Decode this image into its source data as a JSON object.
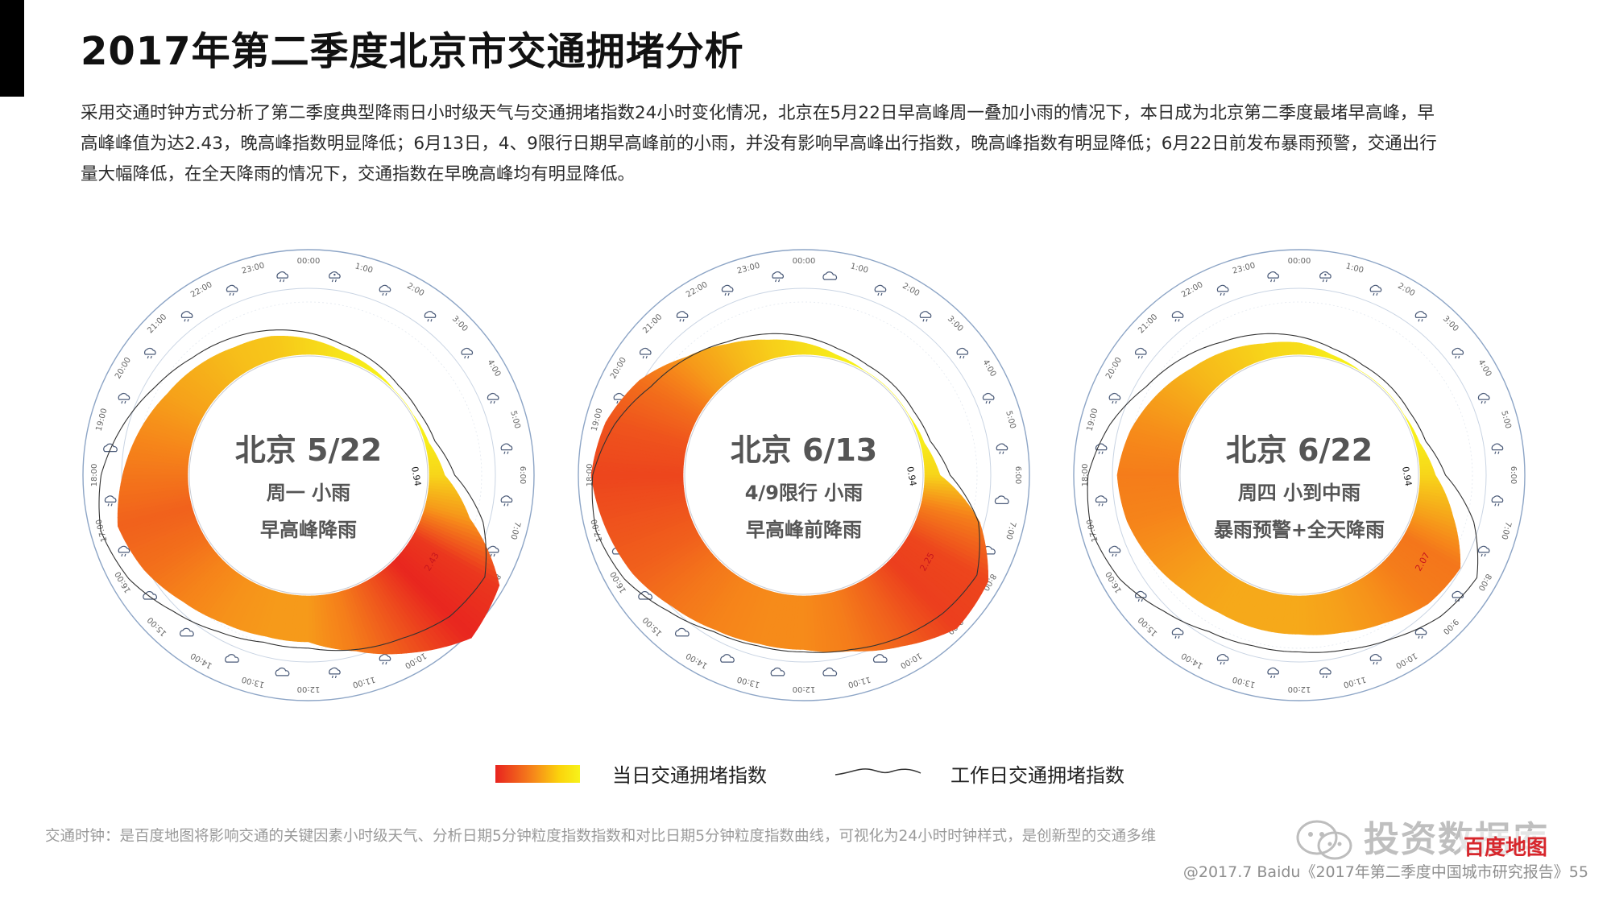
{
  "header": {
    "title": "2017年第二季度北京市交通拥堵分析",
    "intro_lines": [
      "采用交通时钟方式分析了第二季度典型降雨日小时级天气与交通拥堵指数24小时变化情况，北京在5月22日早高峰周一叠加小雨的情况下，本日成为北京第二季度最堵早高峰，早",
      "高峰峰值为达2.43，晚高峰指数明显降低；6月13日，4、9限行日期早高峰前的小雨，并没有影响早高峰出行指数，晚高峰指数有明显降低；6月22日前发布暴雨预警，交通出行",
      "量大幅降低，在全天降雨的情况下，交通指数在早晚高峰均有明显降低。"
    ]
  },
  "colors": {
    "congestion_low": "#f7f31a",
    "congestion_mid": "#f6871a",
    "congestion_high": "#e8231f",
    "ring_outline": "#8da5c6",
    "center_text": "#555555"
  },
  "chart_data": [
    {
      "type": "radial-area",
      "title": "北京 5/22",
      "subtitle": "周一 小雨",
      "note": "早高峰降雨",
      "peak_labels": [
        "0.94",
        "2.43"
      ],
      "hours": [
        "00:00",
        "1:00",
        "2:00",
        "3:00",
        "4:00",
        "5:00",
        "6:00",
        "7:00",
        "8:00",
        "9:00",
        "10:00",
        "11:00",
        "12:00",
        "13:00",
        "14:00",
        "15:00",
        "16:00",
        "17:00",
        "18:00",
        "19:00",
        "20:00",
        "21:00",
        "22:00",
        "23:00"
      ],
      "today_index": [
        1.2,
        1.1,
        1.05,
        1.0,
        1.0,
        1.05,
        1.2,
        1.6,
        2.3,
        2.43,
        2.1,
        1.8,
        1.6,
        1.6,
        1.65,
        1.75,
        1.9,
        2.0,
        1.85,
        1.7,
        1.55,
        1.45,
        1.35,
        1.3
      ],
      "workday_index": [
        1.25,
        1.15,
        1.1,
        1.05,
        1.05,
        1.1,
        1.3,
        1.75,
        2.05,
        2.0,
        1.85,
        1.75,
        1.65,
        1.65,
        1.75,
        1.9,
        2.1,
        2.2,
        2.1,
        1.9,
        1.7,
        1.55,
        1.45,
        1.35
      ],
      "weather_icons": [
        "cloudy-rain-icon",
        "rain-icon",
        "rain-icon",
        "rain-icon",
        "rain-icon",
        "rain-icon",
        "rain-icon",
        "rain-icon",
        "rain-icon",
        "cloud-icon",
        "rain-icon",
        "rain-icon",
        "cloud-icon",
        "cloud-icon",
        "cloud-icon",
        "cloud-icon",
        "rain-icon",
        "rain-icon",
        "cloud-icon",
        "rain-icon",
        "rain-icon",
        "rain-icon",
        "rain-icon",
        "rain-icon"
      ]
    },
    {
      "type": "radial-area",
      "title": "北京 6/13",
      "subtitle": "4/9限行 小雨",
      "note": "早高峰前降雨",
      "peak_labels": [
        "0.94",
        "2.25"
      ],
      "hours": [
        "00:00",
        "1:00",
        "2:00",
        "3:00",
        "4:00",
        "5:00",
        "6:00",
        "7:00",
        "8:00",
        "9:00",
        "10:00",
        "11:00",
        "12:00",
        "13:00",
        "14:00",
        "15:00",
        "16:00",
        "17:00",
        "18:00",
        "19:00",
        "20:00",
        "21:00",
        "22:00",
        "23:00"
      ],
      "today_index": [
        1.15,
        1.05,
        1.0,
        1.0,
        1.0,
        1.05,
        1.2,
        1.8,
        2.2,
        2.25,
        2.0,
        1.8,
        1.7,
        1.7,
        1.75,
        1.85,
        2.0,
        2.1,
        2.2,
        2.1,
        1.9,
        1.6,
        1.4,
        1.25
      ],
      "workday_index": [
        1.2,
        1.1,
        1.05,
        1.05,
        1.05,
        1.1,
        1.3,
        1.75,
        2.0,
        1.95,
        1.85,
        1.75,
        1.7,
        1.7,
        1.75,
        1.9,
        2.1,
        2.2,
        2.15,
        1.95,
        1.7,
        1.55,
        1.4,
        1.3
      ],
      "weather_icons": [
        "cloud-icon",
        "rain-icon",
        "rain-icon",
        "rain-icon",
        "rain-icon",
        "rain-icon",
        "cloud-icon",
        "cloud-icon",
        "cloud-icon",
        "rain-icon",
        "cloud-icon",
        "cloud-icon",
        "cloud-icon",
        "cloud-icon",
        "cloud-icon",
        "cloud-icon",
        "cloud-icon",
        "rain-icon",
        "rain-icon",
        "rain-icon",
        "rain-icon",
        "rain-icon",
        "rain-icon",
        "rain-icon"
      ]
    },
    {
      "type": "radial-area",
      "title": "北京 6/22",
      "subtitle": "周四 小到中雨",
      "note": "暴雨预警+全天降雨",
      "peak_labels": [
        "0.94",
        "2.07"
      ],
      "hours": [
        "00:00",
        "1:00",
        "2:00",
        "3:00",
        "4:00",
        "5:00",
        "6:00",
        "7:00",
        "8:00",
        "9:00",
        "10:00",
        "11:00",
        "12:00",
        "13:00",
        "14:00",
        "15:00",
        "16:00",
        "17:00",
        "18:00",
        "19:00",
        "20:00",
        "21:00",
        "22:00",
        "23:00"
      ],
      "today_index": [
        1.15,
        1.05,
        1.0,
        1.0,
        1.0,
        1.05,
        1.2,
        1.5,
        1.85,
        1.8,
        1.65,
        1.55,
        1.5,
        1.5,
        1.5,
        1.55,
        1.65,
        1.75,
        1.8,
        1.7,
        1.55,
        1.4,
        1.3,
        1.2
      ],
      "workday_index": [
        1.2,
        1.1,
        1.05,
        1.05,
        1.05,
        1.1,
        1.3,
        1.75,
        2.07,
        2.0,
        1.85,
        1.75,
        1.7,
        1.7,
        1.75,
        1.9,
        2.1,
        2.2,
        2.15,
        1.95,
        1.7,
        1.55,
        1.4,
        1.3
      ],
      "weather_icons": [
        "cloudy-rain-icon",
        "rain-icon",
        "rain-icon",
        "rain-icon",
        "rain-icon",
        "rain-icon",
        "rain-icon",
        "rain-icon",
        "rain-icon",
        "rain-icon",
        "rain-icon",
        "rain-icon",
        "rain-icon",
        "rain-icon",
        "rain-icon",
        "rain-icon",
        "rain-icon",
        "rain-icon",
        "rain-icon",
        "rain-icon",
        "rain-icon",
        "rain-icon",
        "rain-icon",
        "rain-icon"
      ]
    }
  ],
  "legend": {
    "today_label": "当日交通拥堵指数",
    "workday_label": "工作日交通拥堵指数"
  },
  "footer": {
    "footnote": "交通时钟：是百度地图将影响交通的关键因素小时级天气、分析日期5分钟粒度指数指数和对比日期5分钟粒度指数曲线，可视化为24小时时钟样式，是创新型的交通多维",
    "watermark": "投资数据库",
    "brand": "百度地图",
    "copyright": "@2017.7 Baidu《2017年第二季度中国城市研究报告》55"
  }
}
